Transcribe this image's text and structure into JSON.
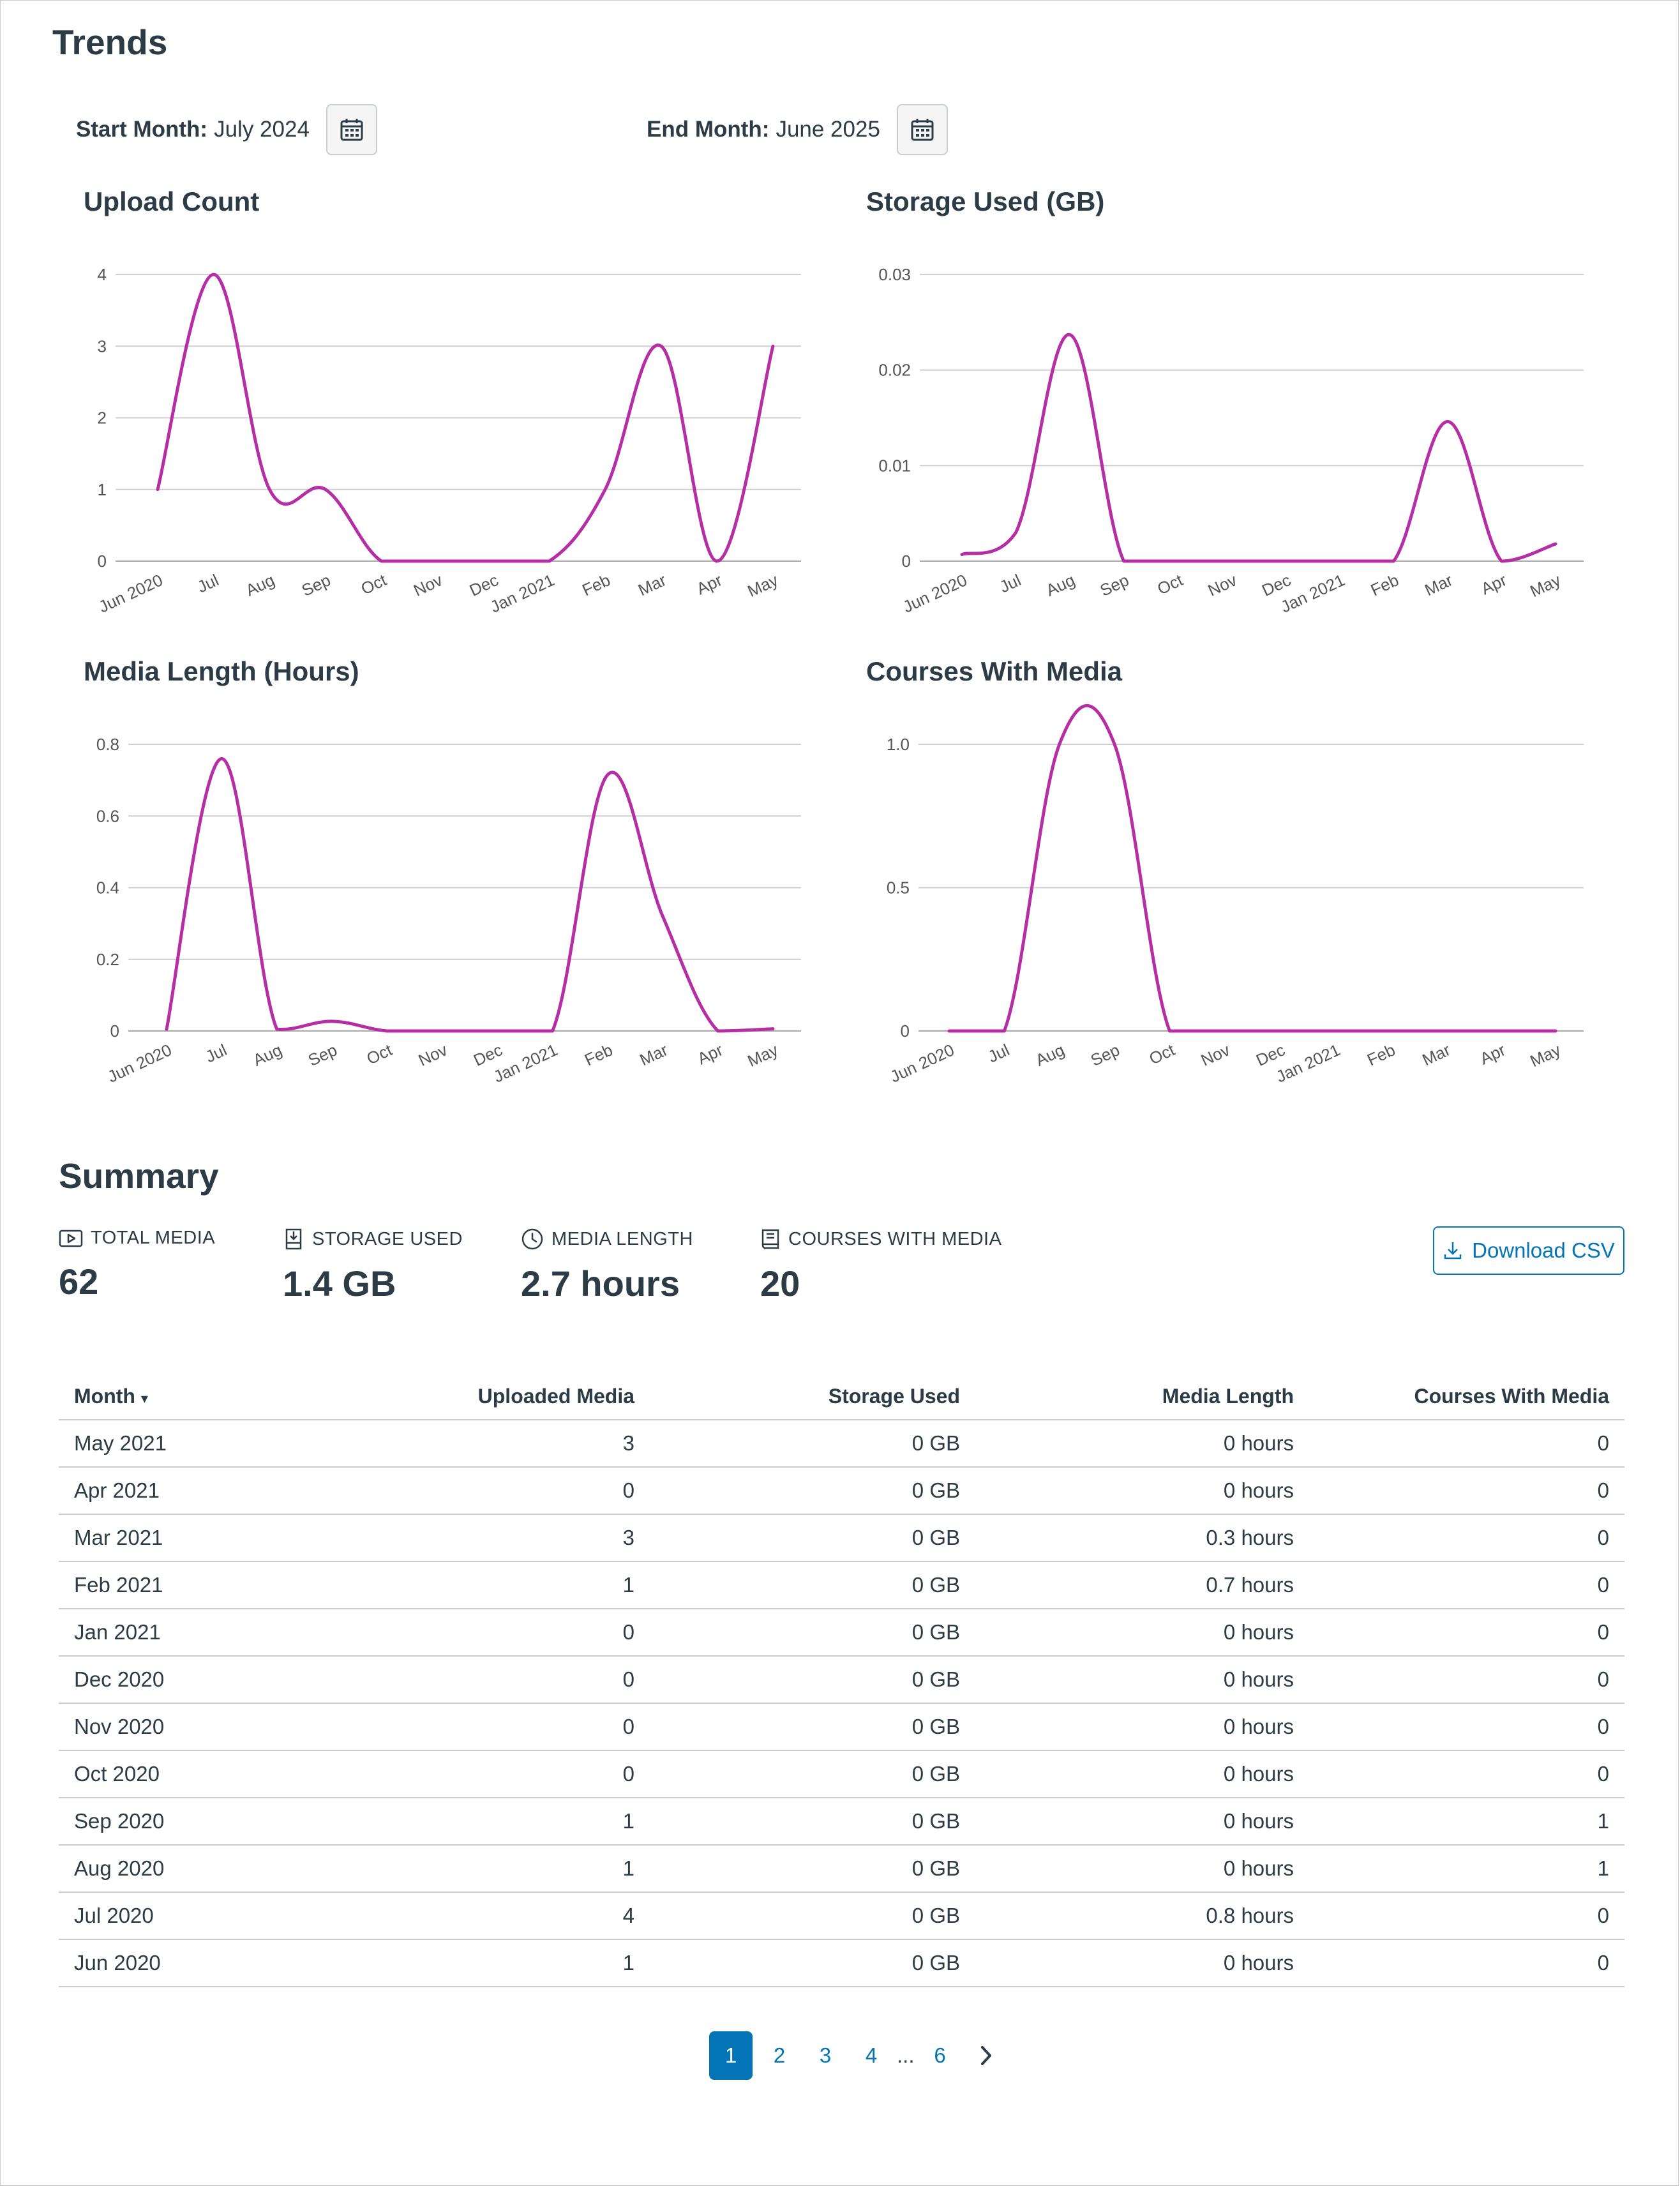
{
  "trends": {
    "title": "Trends",
    "start_label": "Start Month:",
    "start_value": "July 2024",
    "end_label": "End Month:",
    "end_value": "June 2025"
  },
  "chart_data": [
    {
      "type": "line",
      "title": "Upload Count",
      "x": [
        "Jun 2020",
        "Jul",
        "Aug",
        "Sep",
        "Oct",
        "Nov",
        "Dec",
        "Jan 2021",
        "Feb",
        "Mar",
        "Apr",
        "May"
      ],
      "y_ticks": [
        "0",
        "1",
        "2",
        "3",
        "4"
      ],
      "ylim": [
        0,
        4
      ],
      "series": [
        {
          "values": [
            1,
            4,
            1,
            1,
            0,
            0,
            0,
            0,
            1,
            3,
            0,
            3
          ]
        }
      ],
      "color": "#b52ea4",
      "grid": true
    },
    {
      "type": "line",
      "title": "Storage Used (GB)",
      "x": [
        "Jun 2020",
        "Jul",
        "Aug",
        "Sep",
        "Oct",
        "Nov",
        "Dec",
        "Jan 2021",
        "Feb",
        "Mar",
        "Apr",
        "May"
      ],
      "y_ticks": [
        "0",
        "0.01",
        "0.02",
        "0.03"
      ],
      "ylim": [
        0,
        0.03
      ],
      "series": [
        {
          "values": [
            0.0007,
            0.003,
            0.0237,
            0,
            0,
            0,
            0,
            0,
            0,
            0.0146,
            0,
            0.0018
          ]
        }
      ],
      "color": "#b52ea4",
      "grid": true
    },
    {
      "type": "line",
      "title": "Media Length (Hours)",
      "x": [
        "Jun 2020",
        "Jul",
        "Aug",
        "Sep",
        "Oct",
        "Nov",
        "Dec",
        "Jan 2021",
        "Feb",
        "Mar",
        "Apr",
        "May"
      ],
      "y_ticks": [
        "0",
        "0.2",
        "0.4",
        "0.6",
        "0.8"
      ],
      "ylim": [
        0,
        0.8
      ],
      "series": [
        {
          "values": [
            0.005,
            0.76,
            0.005,
            0.027,
            0,
            0,
            0,
            0,
            0.715,
            0.32,
            0,
            0.006
          ]
        }
      ],
      "color": "#b52ea4",
      "grid": true
    },
    {
      "type": "line",
      "title": "Courses With Media",
      "x": [
        "Jun 2020",
        "Jul",
        "Aug",
        "Sep",
        "Oct",
        "Nov",
        "Dec",
        "Jan 2021",
        "Feb",
        "Mar",
        "Apr",
        "May"
      ],
      "y_ticks": [
        "0",
        "0.5",
        "1.0"
      ],
      "ylim": [
        0,
        1.0
      ],
      "series": [
        {
          "values": [
            0,
            0,
            1,
            1,
            0,
            0,
            0,
            0,
            0,
            0,
            0,
            0
          ]
        }
      ],
      "color": "#b52ea4",
      "grid": true
    }
  ],
  "summary": {
    "title": "Summary",
    "stats": [
      {
        "label": "TOTAL MEDIA",
        "value": "62",
        "icon": "video-icon"
      },
      {
        "label": "STORAGE USED",
        "value": "1.4 GB",
        "icon": "storage-icon"
      },
      {
        "label": "MEDIA LENGTH",
        "value": "2.7 hours",
        "icon": "clock-icon"
      },
      {
        "label": "COURSES WITH MEDIA",
        "value": "20",
        "icon": "book-icon"
      }
    ],
    "download_label": "Download CSV"
  },
  "table": {
    "headers": [
      "Month",
      "Uploaded Media",
      "Storage Used",
      "Media Length",
      "Courses With Media"
    ],
    "sort_indicator": "▾",
    "rows": [
      [
        "May 2021",
        "3",
        "0 GB",
        "0 hours",
        "0"
      ],
      [
        "Apr 2021",
        "0",
        "0 GB",
        "0 hours",
        "0"
      ],
      [
        "Mar 2021",
        "3",
        "0 GB",
        "0.3 hours",
        "0"
      ],
      [
        "Feb 2021",
        "1",
        "0 GB",
        "0.7 hours",
        "0"
      ],
      [
        "Jan 2021",
        "0",
        "0 GB",
        "0 hours",
        "0"
      ],
      [
        "Dec 2020",
        "0",
        "0 GB",
        "0 hours",
        "0"
      ],
      [
        "Nov 2020",
        "0",
        "0 GB",
        "0 hours",
        "0"
      ],
      [
        "Oct 2020",
        "0",
        "0 GB",
        "0 hours",
        "0"
      ],
      [
        "Sep 2020",
        "1",
        "0 GB",
        "0 hours",
        "1"
      ],
      [
        "Aug 2020",
        "1",
        "0 GB",
        "0 hours",
        "1"
      ],
      [
        "Jul 2020",
        "4",
        "0 GB",
        "0.8 hours",
        "0"
      ],
      [
        "Jun 2020",
        "1",
        "0 GB",
        "0 hours",
        "0"
      ]
    ]
  },
  "pagination": {
    "pages": [
      "1",
      "2",
      "3",
      "4"
    ],
    "ellipsis": "...",
    "last": "6",
    "current": "1"
  }
}
